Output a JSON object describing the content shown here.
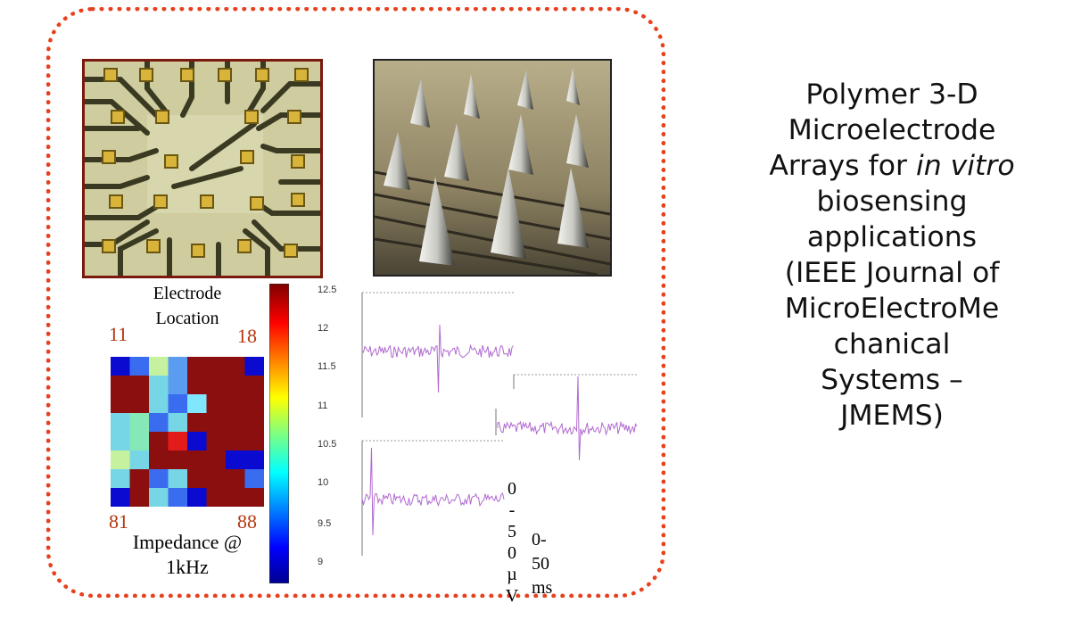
{
  "heatmap": {
    "title_line1": "Electrode",
    "title_line2": "Location",
    "corner_tl": "11",
    "corner_tr": "18",
    "corner_bl": "81",
    "corner_br": "88",
    "caption_line1": "Impedance @",
    "caption_line2": "1kHz",
    "colorbar_ticks": [
      "12.5",
      "12",
      "11.5",
      "11",
      "10.5",
      "10",
      "9.5",
      "9"
    ]
  },
  "traces": {
    "amp_chars": [
      "0",
      "-",
      "5",
      "0",
      "µ",
      "V"
    ],
    "time_line1": "0-",
    "time_line2": "50",
    "time_line3": "ms"
  },
  "title": {
    "line1": "Polymer 3-D",
    "line2": "Microelectrode",
    "line3_pre": "Arrays for ",
    "line3_em": "in vitro",
    "line4": "biosensing",
    "line5": "applications",
    "line6": "(IEEE Journal of",
    "line7": "MicroElectroMe",
    "line8": "chanical",
    "line9": "Systems –",
    "line10": "JMEMS)"
  },
  "colors": {
    "frame": "#e8401c",
    "trace": "#b06ad0",
    "corner_numbers": "#b5360f"
  }
}
